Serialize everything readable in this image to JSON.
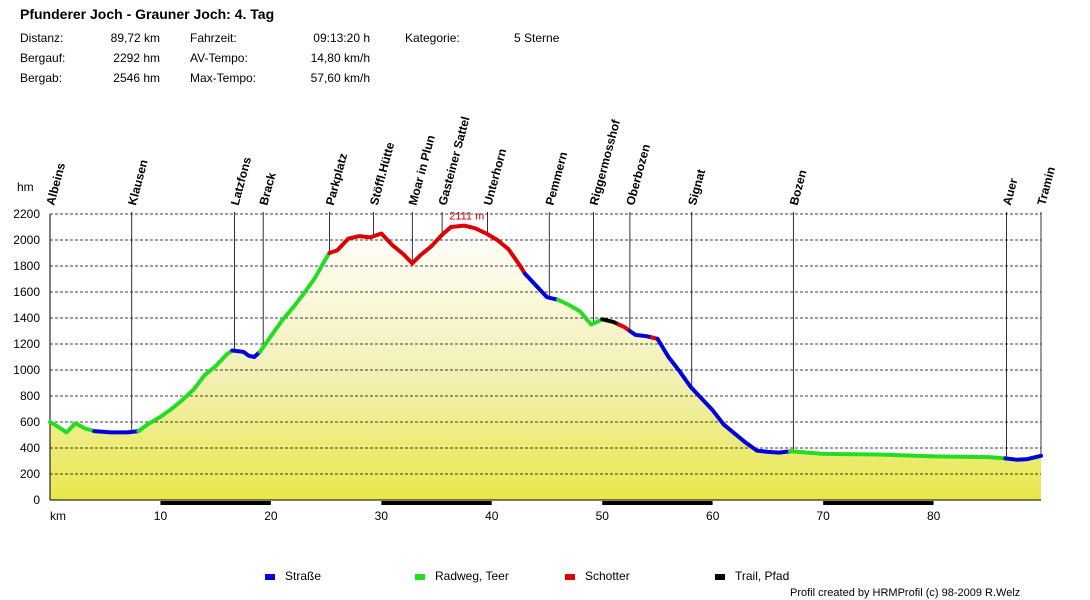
{
  "header": {
    "title": "Pfunderer Joch - Grauner Joch: 4. Tag",
    "stats": [
      {
        "label": "Distanz:",
        "value": "89,72 km"
      },
      {
        "label": "Bergauf:",
        "value": "2292 hm"
      },
      {
        "label": "Bergab:",
        "value": "2546 hm"
      },
      {
        "label": "Fahrzeit:",
        "value": "09:13:20 h"
      },
      {
        "label": "AV-Tempo:",
        "value": "14,80 km/h"
      },
      {
        "label": "Max-Tempo:",
        "value": "57,60 km/h"
      },
      {
        "label": "Kategorie:",
        "value": "5 Sterne"
      }
    ]
  },
  "chart_data": {
    "type": "area",
    "xlabel": "km",
    "ylabel": "hm",
    "xlim": [
      0,
      89.72
    ],
    "ylim": [
      0,
      2200
    ],
    "xticks": [
      10,
      20,
      30,
      40,
      50,
      60,
      70,
      80
    ],
    "yticks": [
      0,
      200,
      400,
      600,
      800,
      1000,
      1200,
      1400,
      1600,
      1800,
      2000,
      2200
    ],
    "grid": "horizontal dashed",
    "max_annotation": {
      "label": "2111 m",
      "x": 37.5,
      "y": 2111
    },
    "profile": [
      {
        "x": 0,
        "y": 600
      },
      {
        "x": 0.8,
        "y": 560
      },
      {
        "x": 1.5,
        "y": 520
      },
      {
        "x": 2.3,
        "y": 590
      },
      {
        "x": 3.2,
        "y": 550
      },
      {
        "x": 4,
        "y": 530
      },
      {
        "x": 5.5,
        "y": 520
      },
      {
        "x": 7,
        "y": 520
      },
      {
        "x": 8,
        "y": 530
      },
      {
        "x": 9,
        "y": 590
      },
      {
        "x": 10,
        "y": 640
      },
      {
        "x": 11,
        "y": 700
      },
      {
        "x": 12,
        "y": 770
      },
      {
        "x": 13,
        "y": 850
      },
      {
        "x": 14,
        "y": 960
      },
      {
        "x": 15,
        "y": 1030
      },
      {
        "x": 16,
        "y": 1120
      },
      {
        "x": 16.5,
        "y": 1150
      },
      {
        "x": 17.5,
        "y": 1140
      },
      {
        "x": 18,
        "y": 1110
      },
      {
        "x": 18.5,
        "y": 1100
      },
      {
        "x": 19,
        "y": 1140
      },
      {
        "x": 20,
        "y": 1260
      },
      {
        "x": 21,
        "y": 1380
      },
      {
        "x": 22,
        "y": 1480
      },
      {
        "x": 23,
        "y": 1590
      },
      {
        "x": 24,
        "y": 1710
      },
      {
        "x": 25,
        "y": 1860
      },
      {
        "x": 25.3,
        "y": 1900
      },
      {
        "x": 26,
        "y": 1920
      },
      {
        "x": 27,
        "y": 2010
      },
      {
        "x": 28,
        "y": 2030
      },
      {
        "x": 29,
        "y": 2020
      },
      {
        "x": 30,
        "y": 2050
      },
      {
        "x": 31,
        "y": 1960
      },
      {
        "x": 32,
        "y": 1890
      },
      {
        "x": 32.8,
        "y": 1820
      },
      {
        "x": 33.5,
        "y": 1880
      },
      {
        "x": 34.5,
        "y": 1950
      },
      {
        "x": 35.5,
        "y": 2040
      },
      {
        "x": 36.3,
        "y": 2100
      },
      {
        "x": 37.5,
        "y": 2111
      },
      {
        "x": 38.5,
        "y": 2090
      },
      {
        "x": 39.5,
        "y": 2050
      },
      {
        "x": 40.5,
        "y": 2000
      },
      {
        "x": 41.5,
        "y": 1930
      },
      {
        "x": 42.5,
        "y": 1810
      },
      {
        "x": 43,
        "y": 1740
      },
      {
        "x": 44,
        "y": 1650
      },
      {
        "x": 45,
        "y": 1560
      },
      {
        "x": 46,
        "y": 1540
      },
      {
        "x": 47,
        "y": 1500
      },
      {
        "x": 48,
        "y": 1450
      },
      {
        "x": 49,
        "y": 1350
      },
      {
        "x": 50,
        "y": 1390
      },
      {
        "x": 51,
        "y": 1370
      },
      {
        "x": 52,
        "y": 1330
      },
      {
        "x": 53,
        "y": 1270
      },
      {
        "x": 54,
        "y": 1260
      },
      {
        "x": 55,
        "y": 1240
      },
      {
        "x": 56,
        "y": 1100
      },
      {
        "x": 57,
        "y": 990
      },
      {
        "x": 58,
        "y": 870
      },
      {
        "x": 59,
        "y": 780
      },
      {
        "x": 60,
        "y": 690
      },
      {
        "x": 61,
        "y": 580
      },
      {
        "x": 62,
        "y": 510
      },
      {
        "x": 63,
        "y": 440
      },
      {
        "x": 64,
        "y": 380
      },
      {
        "x": 65,
        "y": 370
      },
      {
        "x": 66,
        "y": 365
      },
      {
        "x": 67,
        "y": 375
      },
      {
        "x": 70,
        "y": 355
      },
      {
        "x": 75,
        "y": 350
      },
      {
        "x": 80,
        "y": 335
      },
      {
        "x": 85,
        "y": 330
      },
      {
        "x": 86.5,
        "y": 320
      },
      {
        "x": 87.5,
        "y": 310
      },
      {
        "x": 88.5,
        "y": 315
      },
      {
        "x": 89.72,
        "y": 340
      }
    ],
    "surface_segments": [
      {
        "type": "Radweg, Teer",
        "from": 0,
        "to": 4
      },
      {
        "type": "Straße",
        "from": 4,
        "to": 8
      },
      {
        "type": "Radweg, Teer",
        "from": 8,
        "to": 16.5
      },
      {
        "type": "Straße",
        "from": 16.5,
        "to": 19
      },
      {
        "type": "Radweg, Teer",
        "from": 19,
        "to": 25.3
      },
      {
        "type": "Schotter",
        "from": 25.3,
        "to": 43
      },
      {
        "type": "Straße",
        "from": 43,
        "to": 46
      },
      {
        "type": "Radweg, Teer",
        "from": 46,
        "to": 50
      },
      {
        "type": "Trail, Pfad",
        "from": 50,
        "to": 51.5
      },
      {
        "type": "Schotter",
        "from": 51.5,
        "to": 52.5
      },
      {
        "type": "Straße",
        "from": 52.5,
        "to": 54.5
      },
      {
        "type": "Schotter",
        "from": 54.5,
        "to": 55
      },
      {
        "type": "Straße",
        "from": 55,
        "to": 67
      },
      {
        "type": "Radweg, Teer",
        "from": 67,
        "to": 86.5
      },
      {
        "type": "Straße",
        "from": 86.5,
        "to": 89.72
      }
    ],
    "waypoints": [
      {
        "name": "Albeins",
        "x": 0
      },
      {
        "name": "Klausen",
        "x": 7.4
      },
      {
        "name": "Latzfons",
        "x": 16.7
      },
      {
        "name": "Brack",
        "x": 19.3
      },
      {
        "name": "Parkplatz",
        "x": 25.3
      },
      {
        "name": "Stöffl.Hütte",
        "x": 29.3
      },
      {
        "name": "Moar in Plun",
        "x": 32.8
      },
      {
        "name": "Gasteiner Sattel",
        "x": 35.5
      },
      {
        "name": "Unterhorn",
        "x": 39.6
      },
      {
        "name": "Pemmern",
        "x": 45.2
      },
      {
        "name": "Riggermosshof",
        "x": 49.2
      },
      {
        "name": "Oberbozen",
        "x": 52.5
      },
      {
        "name": "Signat",
        "x": 58.1
      },
      {
        "name": "Bozen",
        "x": 67.3
      },
      {
        "name": "Auer",
        "x": 86.6
      },
      {
        "name": "Tramin",
        "x": 89.72
      }
    ],
    "legend": [
      {
        "label": "Straße",
        "color": "#0000dd"
      },
      {
        "label": "Radweg, Teer",
        "color": "#22dd22"
      },
      {
        "label": "Schotter",
        "color": "#dd0000"
      },
      {
        "label": "Trail, Pfad",
        "color": "#000000"
      }
    ]
  },
  "credit": "Profil created by HRMProfil (c) 98-2009 R.Welz"
}
